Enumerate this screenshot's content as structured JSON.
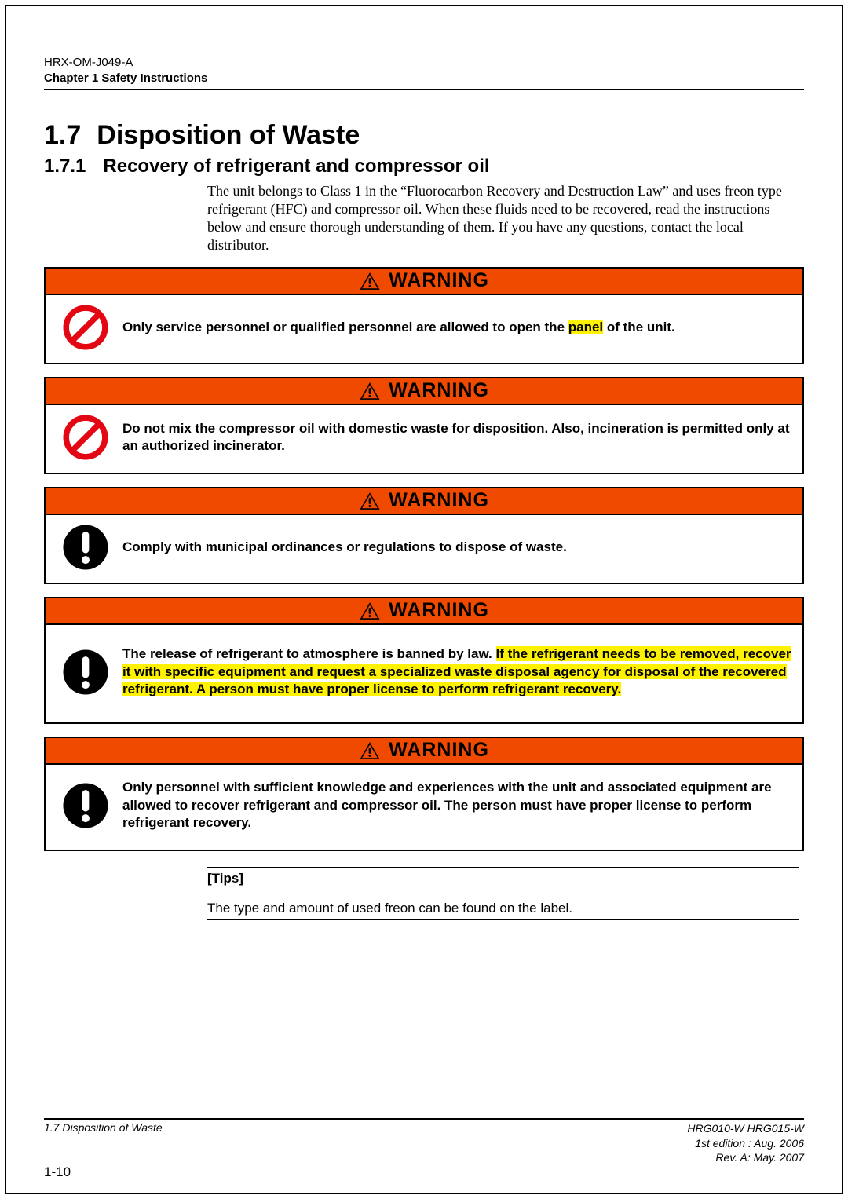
{
  "header": {
    "doc_id": "HRX-OM-J049-A",
    "chapter": "Chapter 1   Safety Instructions"
  },
  "section": {
    "num": "1.7",
    "title": "Disposition of Waste"
  },
  "subsection": {
    "num": "1.7.1",
    "title": "Recovery of refrigerant and compressor oil"
  },
  "intro": "The unit belongs to Class 1 in the “Fluorocarbon Recovery and Destruction Law” and uses freon type refrigerant (HFC) and compressor oil. When these fluids need to be recovered, read the instructions below and ensure thorough understanding of them. If you have any questions, contact the local distributor.",
  "warning_label": "WARNING",
  "colors": {
    "warning_bg": "#f04a00",
    "highlight_bg": "#fff200",
    "prohibit_stroke": "#e30613",
    "mandatory_fill": "#000000",
    "text": "#000000",
    "border": "#000000"
  },
  "warnings": [
    {
      "icon": "prohibit",
      "segments": [
        {
          "t": "Only service personnel or qualified personnel are allowed to open the ",
          "hl": false
        },
        {
          "t": "panel",
          "hl": true
        },
        {
          "t": " of the unit.",
          "hl": false
        }
      ]
    },
    {
      "icon": "prohibit",
      "segments": [
        {
          "t": "Do not mix the compressor oil with domestic waste for disposition. Also, incineration is permitted only at an authorized incinerator.",
          "hl": false
        }
      ]
    },
    {
      "icon": "mandatory",
      "segments": [
        {
          "t": "Comply with municipal ordinances or regulations to dispose of waste.",
          "hl": false
        }
      ]
    },
    {
      "icon": "mandatory",
      "segments": [
        {
          "t": "The release of refrigerant to atmosphere is banned by law. ",
          "hl": false
        },
        {
          "t": "If the refrigerant needs to be removed, recover it with specific equipment and request a specialized waste disposal agency for disposal of the recovered refrigerant. A person must have proper license to perform refrigerant recovery.",
          "hl": true
        }
      ]
    },
    {
      "icon": "mandatory",
      "segments": [
        {
          "t": "Only personnel with sufficient knowledge and experiences with the unit and associated equipment are allowed to recover refrigerant and compressor oil. The person must have proper license to perform refrigerant recovery.",
          "hl": false
        }
      ]
    }
  ],
  "tips": {
    "label": "[Tips]",
    "body": "The type and amount of used freon can be found on the label."
  },
  "footer": {
    "left": "1.7 Disposition of Waste",
    "right_1": "HRG010-W HRG015-W",
    "right_2": "1st  edition  :  Aug.  2006",
    "right_3": "Rev. A: May.  2007",
    "page": "1-10"
  }
}
